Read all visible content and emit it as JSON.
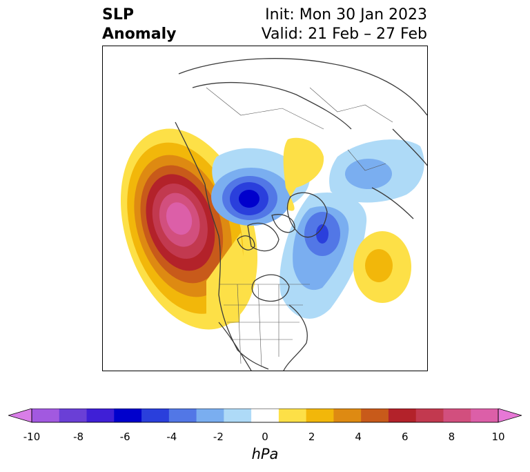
{
  "title": {
    "left_line1": "SLP",
    "left_line2": "Anomaly",
    "right_line1": "Init: Mon 30 Jan 2023",
    "right_line2": "Valid: 21 Feb – 27 Feb"
  },
  "map": {
    "projection": "north-polar-stereographic",
    "region": "North America / North Atlantic / Arctic",
    "features": [
      {
        "name": "north-pacific-high",
        "sign": "positive",
        "peak_hPa": 10
      },
      {
        "name": "hudson-bay-low",
        "sign": "negative",
        "peak_hPa": -6
      },
      {
        "name": "labrador-sea-low",
        "sign": "negative",
        "peak_hPa": -5
      },
      {
        "name": "siberia-high",
        "sign": "positive",
        "peak_hPa": 2
      },
      {
        "name": "north-atlantic-high",
        "sign": "positive",
        "peak_hPa": 2
      },
      {
        "name": "eurasia-low",
        "sign": "negative",
        "peak_hPa": -2
      }
    ]
  },
  "colorbar": {
    "unit": "hPa",
    "ticks": [
      "-10",
      "-8",
      "-6",
      "-4",
      "-2",
      "0",
      "2",
      "4",
      "6",
      "8",
      "10"
    ],
    "colors": [
      "#d97ee8",
      "#a259e0",
      "#6a3fd6",
      "#3f1fd6",
      "#0000cc",
      "#2a3fdc",
      "#5277e6",
      "#7aaef0",
      "#aedaf7",
      "#ffffff",
      "#fde047",
      "#f2b70a",
      "#de8a12",
      "#c85a1a",
      "#b3222a",
      "#c2394f",
      "#d24f7e",
      "#dc5fa8",
      "#e778d6"
    ]
  }
}
